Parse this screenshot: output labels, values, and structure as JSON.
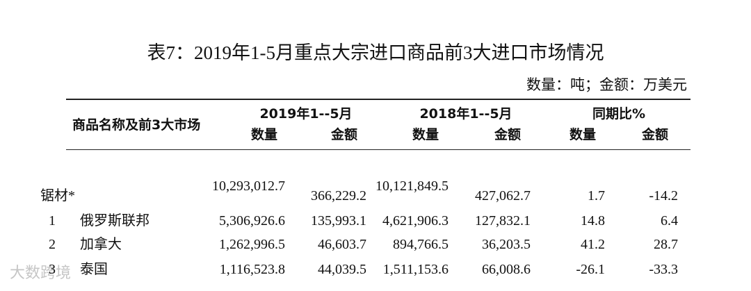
{
  "header": {
    "title": "表7：2019年1-5月重点大宗进口商品前3大进口市场情况",
    "unit": "数量：吨；金额：万美元"
  },
  "table": {
    "columns": {
      "name": "商品名称及前3大市场",
      "groups": [
        "2019年1--5月",
        "2018年1--5月",
        "同期比%"
      ],
      "sub": [
        "数量",
        "金额",
        "数量",
        "金额",
        "数量",
        "金额"
      ]
    },
    "rows": [
      {
        "rank": null,
        "name": "锯材*",
        "cells": [
          "10,293,012.7",
          "366,229.2",
          "10,121,849.5",
          "427,062.7",
          "1.7",
          "-14.2"
        ]
      },
      {
        "rank": "1",
        "name": "俄罗斯联邦",
        "cells": [
          "5,306,926.6",
          "135,993.1",
          "4,621,906.3",
          "127,832.1",
          "14.8",
          "6.4"
        ]
      },
      {
        "rank": "2",
        "name": "加拿大",
        "cells": [
          "1,262,996.5",
          "46,603.7",
          "894,766.5",
          "36,203.5",
          "41.2",
          "28.7"
        ]
      },
      {
        "rank": "3",
        "name": "泰国",
        "cells": [
          "1,116,523.8",
          "44,039.5",
          "1,511,153.6",
          "66,008.6",
          "-26.1",
          "-33.3"
        ]
      }
    ]
  },
  "watermark": "大数跨境"
}
